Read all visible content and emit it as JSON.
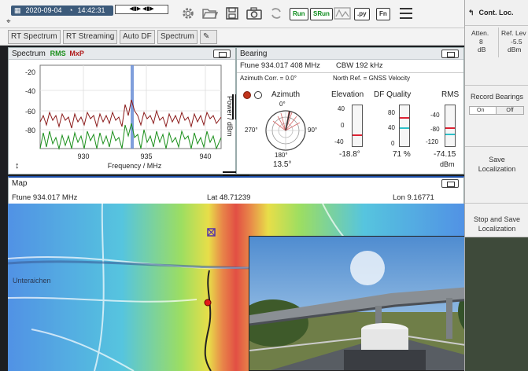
{
  "toolbar": {
    "date": "2020-09-04",
    "time": "14:42:31",
    "run_label": "Run",
    "srun_label": "SRun",
    "py_label": ".py",
    "fn_label": "Fn"
  },
  "tabs": [
    "RT Spectrum",
    "RT Streaming",
    "Auto DF",
    "Spectrum"
  ],
  "spectrum": {
    "title": "Spectrum",
    "legend_rms": "RMS",
    "legend_mxp": "MxP",
    "ylabel": "Power / dBm",
    "xlabel": "Frequency / MHz",
    "yticks": [
      "-20",
      "-40",
      "-60",
      "-80"
    ],
    "xticks": [
      "930",
      "935",
      "940"
    ]
  },
  "bearing": {
    "title": "Bearing",
    "ftune": "Ftune  934.017 408 MHz",
    "cbw": "CBW  192 kHz",
    "azimuth_corr": "Azimuth Corr. =   0.0°",
    "north_ref": "North Ref. = GNSS Velocity",
    "azimuth_label": "Azimuth",
    "elevation_label": "Elevation",
    "df_quality_label": "DF Quality",
    "rms_label": "RMS",
    "compass_0": "0°",
    "compass_90": "90°",
    "compass_180": "180°",
    "compass_270": "270°",
    "azimuth_value": "13.5°",
    "elevation_value": "-18.8°",
    "df_quality_value": "71 %",
    "rms_value": "-74.15",
    "rms_unit": "dBm",
    "elev_ticks": [
      "40",
      "0",
      "-40"
    ],
    "dfq_ticks": [
      "80",
      "40",
      "0"
    ],
    "rms_ticks": [
      "-40",
      "-80",
      "-120"
    ]
  },
  "map": {
    "title": "Map",
    "ftune": "Ftune  934.017 MHz",
    "lat": "Lat  48.71239",
    "lon": "Lon  9.16771",
    "place_label": "Unteraichen"
  },
  "rightpane": {
    "title": "Cont. Loc.",
    "atten_label": "Atten.",
    "atten_value": "8",
    "atten_unit": "dB",
    "ref_label": "Ref. Lev",
    "ref_value": "-5.5",
    "ref_unit": "dBm",
    "record_label": "Record Bearings",
    "on_label": "On",
    "off_label": "Off",
    "save_label_1": "Save",
    "save_label_2": "Localization",
    "stop_label_1": "Stop and Save",
    "stop_label_2": "Localization"
  },
  "colors": {
    "rms": "#1a8f1a",
    "mxp": "#8b1a1a",
    "marker": "#4a72c4",
    "accent": "#1a4ea8"
  }
}
